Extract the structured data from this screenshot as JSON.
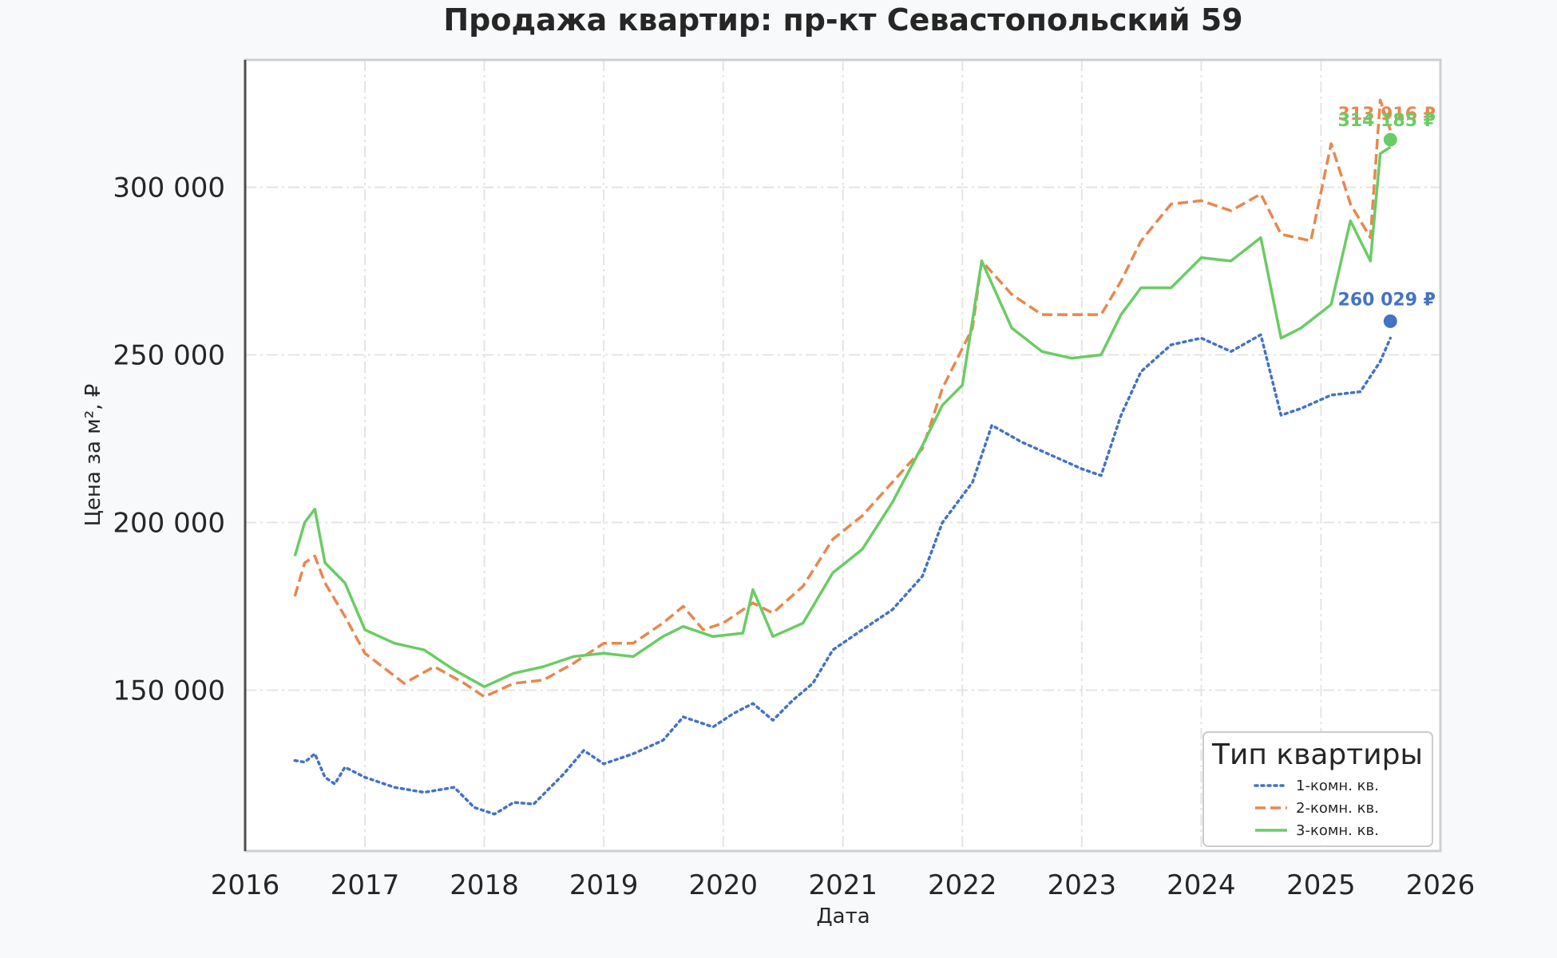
{
  "chart_data": {
    "type": "line",
    "title": "Продажа квартир: пр-кт Севастопольский 59",
    "xlabel": "Дата",
    "ylabel": "Цена за м², ₽",
    "xlim": [
      "2016-01-01",
      "2026-01-01"
    ],
    "ylim": [
      102000,
      338000
    ],
    "x_ticks": [
      "2016",
      "2017",
      "2018",
      "2019",
      "2020",
      "2021",
      "2022",
      "2023",
      "2024",
      "2025",
      "2026"
    ],
    "y_ticks": [
      150000,
      200000,
      250000,
      300000
    ],
    "y_tick_labels": [
      "150 000",
      "200 000",
      "250 000",
      "300 000"
    ],
    "grid": true,
    "legend": {
      "title": "Тип квартиры",
      "position": "bottom-right"
    },
    "series": [
      {
        "name": "1-комн. кв.",
        "color": "#4472c4",
        "style": "dotted",
        "end_label": "260 029 ₽",
        "end_value": 260029,
        "points": [
          [
            "2016-06-01",
            129000
          ],
          [
            "2016-07-01",
            128500
          ],
          [
            "2016-08-01",
            131000
          ],
          [
            "2016-09-01",
            124000
          ],
          [
            "2016-10-01",
            122000
          ],
          [
            "2016-11-01",
            127000
          ],
          [
            "2017-01-01",
            124000
          ],
          [
            "2017-04-01",
            121000
          ],
          [
            "2017-07-01",
            119500
          ],
          [
            "2017-10-01",
            121000
          ],
          [
            "2017-12-01",
            115000
          ],
          [
            "2018-02-01",
            113000
          ],
          [
            "2018-04-01",
            116500
          ],
          [
            "2018-06-01",
            116000
          ],
          [
            "2018-09-01",
            125000
          ],
          [
            "2018-11-01",
            132000
          ],
          [
            "2019-01-01",
            128000
          ],
          [
            "2019-04-01",
            131000
          ],
          [
            "2019-07-01",
            135000
          ],
          [
            "2019-09-01",
            142000
          ],
          [
            "2019-12-01",
            139000
          ],
          [
            "2020-02-01",
            143000
          ],
          [
            "2020-04-01",
            146000
          ],
          [
            "2020-06-01",
            141000
          ],
          [
            "2020-08-01",
            147000
          ],
          [
            "2020-10-01",
            152000
          ],
          [
            "2020-12-01",
            162000
          ],
          [
            "2021-03-01",
            168000
          ],
          [
            "2021-06-01",
            174000
          ],
          [
            "2021-09-01",
            184000
          ],
          [
            "2021-11-01",
            200000
          ],
          [
            "2022-02-01",
            212000
          ],
          [
            "2022-04-01",
            229000
          ],
          [
            "2022-07-01",
            224000
          ],
          [
            "2022-10-01",
            220000
          ],
          [
            "2023-01-01",
            216000
          ],
          [
            "2023-03-01",
            214000
          ],
          [
            "2023-05-01",
            232000
          ],
          [
            "2023-07-01",
            245000
          ],
          [
            "2023-10-01",
            253000
          ],
          [
            "2024-01-01",
            255000
          ],
          [
            "2024-04-01",
            251000
          ],
          [
            "2024-07-01",
            256000
          ],
          [
            "2024-09-01",
            232000
          ],
          [
            "2024-11-01",
            234000
          ],
          [
            "2025-02-01",
            238000
          ],
          [
            "2025-05-01",
            239000
          ],
          [
            "2025-07-01",
            248000
          ],
          [
            "2025-08-01",
            255000
          ]
        ]
      },
      {
        "name": "2-комн. кв.",
        "color": "#e8874e",
        "style": "dashed",
        "end_label": "313 916 ₽",
        "end_value": 313916,
        "points": [
          [
            "2016-06-01",
            178000
          ],
          [
            "2016-07-01",
            188000
          ],
          [
            "2016-08-01",
            190000
          ],
          [
            "2016-09-01",
            182000
          ],
          [
            "2016-11-01",
            172000
          ],
          [
            "2017-01-01",
            161000
          ],
          [
            "2017-05-01",
            152000
          ],
          [
            "2017-08-01",
            157000
          ],
          [
            "2017-11-01",
            152000
          ],
          [
            "2018-01-01",
            148000
          ],
          [
            "2018-04-01",
            152000
          ],
          [
            "2018-07-01",
            153000
          ],
          [
            "2018-10-01",
            158000
          ],
          [
            "2019-01-01",
            164000
          ],
          [
            "2019-04-01",
            164000
          ],
          [
            "2019-07-01",
            170000
          ],
          [
            "2019-09-01",
            175000
          ],
          [
            "2019-11-01",
            168000
          ],
          [
            "2020-01-01",
            170000
          ],
          [
            "2020-04-01",
            176000
          ],
          [
            "2020-06-01",
            173000
          ],
          [
            "2020-09-01",
            181000
          ],
          [
            "2020-12-01",
            195000
          ],
          [
            "2021-03-01",
            202000
          ],
          [
            "2021-06-01",
            212000
          ],
          [
            "2021-09-01",
            222000
          ],
          [
            "2021-11-01",
            240000
          ],
          [
            "2022-02-01",
            258000
          ],
          [
            "2022-03-01",
            278000
          ],
          [
            "2022-06-01",
            268000
          ],
          [
            "2022-09-01",
            262000
          ],
          [
            "2022-12-01",
            262000
          ],
          [
            "2023-03-01",
            262000
          ],
          [
            "2023-05-01",
            272000
          ],
          [
            "2023-07-01",
            284000
          ],
          [
            "2023-10-01",
            295000
          ],
          [
            "2024-01-01",
            296000
          ],
          [
            "2024-04-01",
            293000
          ],
          [
            "2024-07-01",
            298000
          ],
          [
            "2024-09-01",
            286000
          ],
          [
            "2024-12-01",
            284000
          ],
          [
            "2025-02-01",
            313000
          ],
          [
            "2025-04-01",
            295000
          ],
          [
            "2025-06-01",
            285000
          ],
          [
            "2025-07-01",
            326000
          ],
          [
            "2025-08-01",
            317000
          ]
        ]
      },
      {
        "name": "3-комн. кв.",
        "color": "#6acc64",
        "style": "solid",
        "end_label": "314 185 ₽",
        "end_value": 314185,
        "points": [
          [
            "2016-06-01",
            190000
          ],
          [
            "2016-07-01",
            200000
          ],
          [
            "2016-08-01",
            204000
          ],
          [
            "2016-09-01",
            188000
          ],
          [
            "2016-11-01",
            182000
          ],
          [
            "2017-01-01",
            168000
          ],
          [
            "2017-04-01",
            164000
          ],
          [
            "2017-07-01",
            162000
          ],
          [
            "2017-10-01",
            156000
          ],
          [
            "2018-01-01",
            151000
          ],
          [
            "2018-04-01",
            155000
          ],
          [
            "2018-07-01",
            157000
          ],
          [
            "2018-10-01",
            160000
          ],
          [
            "2019-01-01",
            161000
          ],
          [
            "2019-04-01",
            160000
          ],
          [
            "2019-07-01",
            166000
          ],
          [
            "2019-09-01",
            169000
          ],
          [
            "2019-12-01",
            166000
          ],
          [
            "2020-03-01",
            167000
          ],
          [
            "2020-04-01",
            180000
          ],
          [
            "2020-06-01",
            166000
          ],
          [
            "2020-09-01",
            170000
          ],
          [
            "2020-12-01",
            185000
          ],
          [
            "2021-03-01",
            192000
          ],
          [
            "2021-06-01",
            206000
          ],
          [
            "2021-09-01",
            223000
          ],
          [
            "2021-11-01",
            235000
          ],
          [
            "2022-01-01",
            241000
          ],
          [
            "2022-03-01",
            278000
          ],
          [
            "2022-06-01",
            258000
          ],
          [
            "2022-09-01",
            251000
          ],
          [
            "2022-12-01",
            249000
          ],
          [
            "2023-03-01",
            250000
          ],
          [
            "2023-05-01",
            262000
          ],
          [
            "2023-07-01",
            270000
          ],
          [
            "2023-10-01",
            270000
          ],
          [
            "2024-01-01",
            279000
          ],
          [
            "2024-04-01",
            278000
          ],
          [
            "2024-07-01",
            285000
          ],
          [
            "2024-09-01",
            255000
          ],
          [
            "2024-11-01",
            258000
          ],
          [
            "2025-02-01",
            265000
          ],
          [
            "2025-04-01",
            290000
          ],
          [
            "2025-06-01",
            278000
          ],
          [
            "2025-07-01",
            310000
          ],
          [
            "2025-08-01",
            312000
          ]
        ]
      }
    ]
  }
}
